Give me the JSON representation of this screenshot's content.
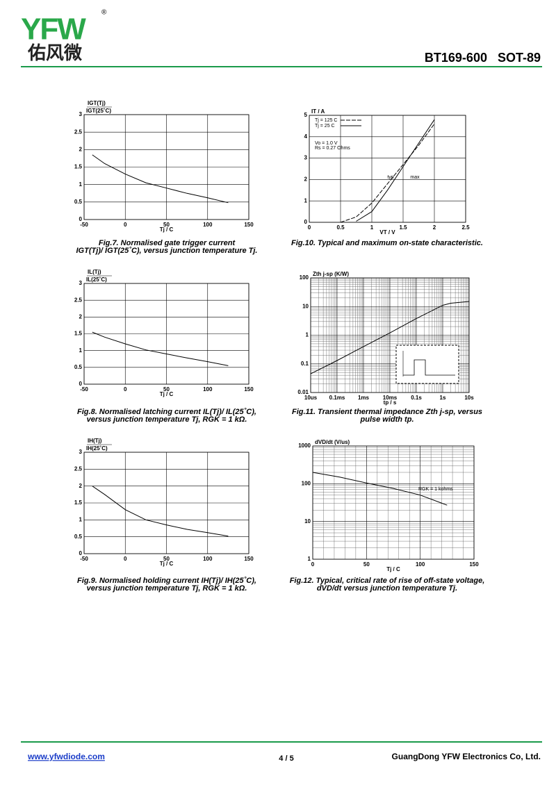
{
  "header": {
    "logo": "YFW",
    "logo_cn": "佑风微",
    "registered": "®",
    "title": "BT169-600   SOT-89"
  },
  "footer": {
    "website": "www.yfwdiode.com",
    "page": "4 / 5",
    "company": "GuangDong YFW Electronics Co, Ltd."
  },
  "chart_data": [
    {
      "type": "line",
      "ylabel": {
        "numerator": "IGT(Tj)",
        "denominator": "IGT(25˚C)"
      },
      "xlabel": "Tj / C",
      "x": [
        -40,
        -25,
        0,
        25,
        50,
        75,
        100,
        125
      ],
      "values": [
        1.85,
        1.6,
        1.3,
        1.05,
        0.9,
        0.75,
        0.62,
        0.48
      ],
      "color": "#000000",
      "xlim": [
        -50,
        150
      ],
      "xticks": [
        -50,
        0,
        50,
        100,
        150
      ],
      "ylim": [
        0,
        3
      ],
      "yticks": [
        0,
        0.5,
        1,
        1.5,
        2,
        2.5,
        3
      ],
      "grid": true,
      "caption": [
        "Fig.7.   Normalised gate trigger current",
        "IGT(Tj)/ IGT(25˚C), versus junction temperature Tj."
      ]
    },
    {
      "type": "line",
      "ylabel": {
        "numerator": "IL(Tj)",
        "denominator": "IL(25˚C)"
      },
      "xlabel": "Tj / C",
      "x": [
        -40,
        -25,
        0,
        25,
        50,
        75,
        100,
        125
      ],
      "values": [
        1.55,
        1.4,
        1.2,
        1.02,
        0.9,
        0.78,
        0.67,
        0.55
      ],
      "color": "#000000",
      "xlim": [
        -50,
        150
      ],
      "xticks": [
        -50,
        0,
        50,
        100,
        150
      ],
      "ylim": [
        0,
        3
      ],
      "yticks": [
        0,
        0.5,
        1,
        1.5,
        2,
        2.5,
        3
      ],
      "grid": true,
      "caption": [
        "Fig.8.   Normalised latching current IL(Tj)/ IL(25˚C),",
        "versus junction temperature Tj, RGK = 1 kΩ."
      ]
    },
    {
      "type": "line",
      "ylabel": {
        "numerator": "IH(Tj)",
        "denominator": "IH(25˚C)"
      },
      "xlabel": "Tj / C",
      "x": [
        -40,
        -25,
        0,
        25,
        50,
        75,
        100,
        125
      ],
      "values": [
        2.0,
        1.75,
        1.3,
        1.0,
        0.85,
        0.72,
        0.62,
        0.52
      ],
      "color": "#000000",
      "xlim": [
        -50,
        150
      ],
      "xticks": [
        -50,
        0,
        50,
        100,
        150
      ],
      "ylim": [
        0,
        3
      ],
      "yticks": [
        0,
        0.5,
        1,
        1.5,
        2,
        2.5,
        3
      ],
      "grid": true,
      "caption": [
        "Fig.9.   Normalised holding current IH(Tj)/ IH(25˚C),",
        "versus junction temperature Tj, RGK = 1 kΩ."
      ]
    },
    {
      "type": "line",
      "ylabel": "IT / A",
      "xlabel": "VT / V",
      "x": [
        0.5,
        0.75,
        1,
        1.25,
        1.5,
        1.75,
        2,
        2.25
      ],
      "series": [
        {
          "name": "Tj = 125 C",
          "color": "#000000",
          "style": "dashed",
          "values": [
            0,
            0.25,
            0.9,
            1.8,
            2.7,
            3.6,
            4.6,
            null
          ]
        },
        {
          "name": "Tj = 25 C",
          "color": "#000000",
          "style": "solid",
          "values": [
            null,
            0.05,
            0.5,
            1.5,
            2.6,
            3.7,
            4.8,
            null
          ]
        }
      ],
      "xlim": [
        0,
        2.5
      ],
      "xticks": [
        0,
        0.5,
        1,
        1.5,
        2,
        2.5
      ],
      "ylim": [
        0,
        5
      ],
      "yticks": [
        0,
        1,
        2,
        3,
        4,
        5
      ],
      "grid": true,
      "legend": "top-left",
      "annotations": [
        "Vo = 1.0 V",
        "Rs = 0.27 Ohms",
        "typ",
        "max"
      ],
      "caption": [
        "Fig.10.  Typical and maximum on-state characteristic."
      ]
    },
    {
      "type": "line",
      "ylabel": "Zth j-sp  (K/W)",
      "xlabel": "tp / s",
      "x": [
        1e-05,
        0.0001,
        0.001,
        0.01,
        0.1,
        1,
        2,
        10
      ],
      "values": [
        0.045,
        0.13,
        0.4,
        1.2,
        3.8,
        11,
        13,
        15
      ],
      "color": "#000000",
      "xscale": "log",
      "yscale": "log",
      "xlim": [
        1e-05,
        10
      ],
      "xticks": [
        {
          "value": 1e-05,
          "label": "10us"
        },
        {
          "value": 0.0001,
          "label": "0.1ms"
        },
        {
          "value": 0.001,
          "label": "1ms"
        },
        {
          "value": 0.01,
          "label": "10ms"
        },
        {
          "value": 0.1,
          "label": "0.1s"
        },
        {
          "value": 1,
          "label": "1s"
        },
        {
          "value": 10,
          "label": "10s"
        }
      ],
      "ylim": [
        0.01,
        100
      ],
      "yticks": [
        0.01,
        0.1,
        1,
        10,
        100
      ],
      "grid": true,
      "minor_grid": true,
      "caption": [
        "Fig.11.  Transient thermal impedance Zth j-sp, versus",
        "pulse width tp."
      ]
    },
    {
      "type": "line",
      "ylabel": "dVD/dt (V/us)",
      "xlabel": "Tj / C",
      "x": [
        0,
        25,
        50,
        75,
        100,
        125
      ],
      "values": [
        200,
        150,
        105,
        75,
        50,
        27
      ],
      "color": "#000000",
      "yscale": "log",
      "xlim": [
        0,
        150
      ],
      "xticks": [
        0,
        50,
        100,
        150
      ],
      "ylim": [
        1,
        1000
      ],
      "yticks": [
        1,
        10,
        100,
        1000
      ],
      "grid": true,
      "minor_grid": true,
      "annotations": [
        "RGK = 1 kohms"
      ],
      "caption": [
        "Fig.12.  Typical, critical rate of rise of off-state voltage,",
        "dVD/dt versus junction temperature Tj."
      ]
    }
  ]
}
